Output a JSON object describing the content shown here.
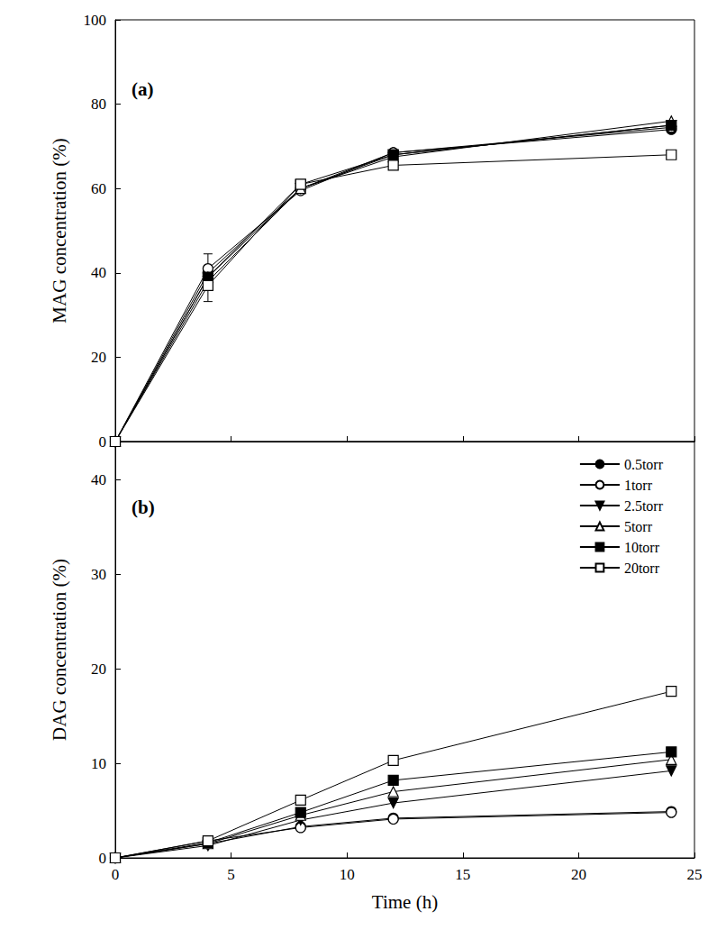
{
  "chart_data": [
    {
      "type": "line",
      "annotation": "(a)",
      "y_label": "MAG concentration (%)",
      "x": [
        0,
        4,
        8,
        12,
        24
      ],
      "xlim": [
        0,
        25
      ],
      "xticks": [
        0,
        5,
        10,
        15,
        20,
        25
      ],
      "ylim": [
        0,
        100
      ],
      "yticks": [
        0,
        20,
        40,
        60,
        80,
        100
      ],
      "grid": false,
      "tick_labels": "y",
      "series": [
        {
          "name": "0.5torr",
          "color": "#000000",
          "marker": "filled-circle",
          "values": [
            0,
            40,
            60,
            68.5,
            74
          ]
        },
        {
          "name": "1torr",
          "color": "#000000",
          "marker": "open-circle",
          "values": [
            0,
            41,
            59.5,
            68.5,
            74.5
          ],
          "errors": [
            null,
            3.5,
            null,
            null,
            null
          ]
        },
        {
          "name": "2.5torr",
          "color": "#000000",
          "marker": "filled-triangle-down",
          "values": [
            0,
            38,
            60,
            68,
            75
          ]
        },
        {
          "name": "5torr",
          "color": "#000000",
          "marker": "open-triangle",
          "values": [
            0,
            39,
            60,
            67.5,
            76
          ]
        },
        {
          "name": "10torr",
          "color": "#000000",
          "marker": "filled-square",
          "values": [
            0,
            39,
            61,
            68,
            75
          ]
        },
        {
          "name": "20torr",
          "color": "#000000",
          "marker": "open-square",
          "values": [
            0,
            37,
            61,
            65.5,
            68
          ],
          "errors": [
            null,
            3.8,
            null,
            null,
            null
          ]
        }
      ]
    },
    {
      "type": "line",
      "annotation": "(b)",
      "x_label": "Time (h)",
      "y_label": "DAG concentration (%)",
      "x": [
        0,
        4,
        8,
        12,
        24
      ],
      "xlim": [
        0,
        25
      ],
      "xticks": [
        0,
        5,
        10,
        15,
        20,
        25
      ],
      "ylim": [
        0,
        44
      ],
      "yticks": [
        0,
        10,
        20,
        30,
        40
      ],
      "grid": false,
      "legend": "upper right",
      "series": [
        {
          "name": "0.5torr",
          "color": "#000000",
          "marker": "filled-circle",
          "values": [
            0,
            1.5,
            3.3,
            4.2,
            4.9
          ]
        },
        {
          "name": "1torr",
          "color": "#000000",
          "marker": "open-circle",
          "values": [
            0,
            1.8,
            3.2,
            4.1,
            4.8
          ]
        },
        {
          "name": "2.5torr",
          "color": "#000000",
          "marker": "filled-triangle-down",
          "values": [
            0,
            1.3,
            4.0,
            5.8,
            9.2
          ]
        },
        {
          "name": "5torr",
          "color": "#000000",
          "marker": "open-triangle",
          "values": [
            0,
            1.5,
            4.5,
            7.0,
            10.4
          ]
        },
        {
          "name": "10torr",
          "color": "#000000",
          "marker": "filled-square",
          "values": [
            0,
            1.6,
            4.8,
            8.2,
            11.2
          ]
        },
        {
          "name": "20torr",
          "color": "#000000",
          "marker": "open-square",
          "values": [
            0,
            1.8,
            6.1,
            10.3,
            17.6
          ]
        }
      ]
    }
  ]
}
